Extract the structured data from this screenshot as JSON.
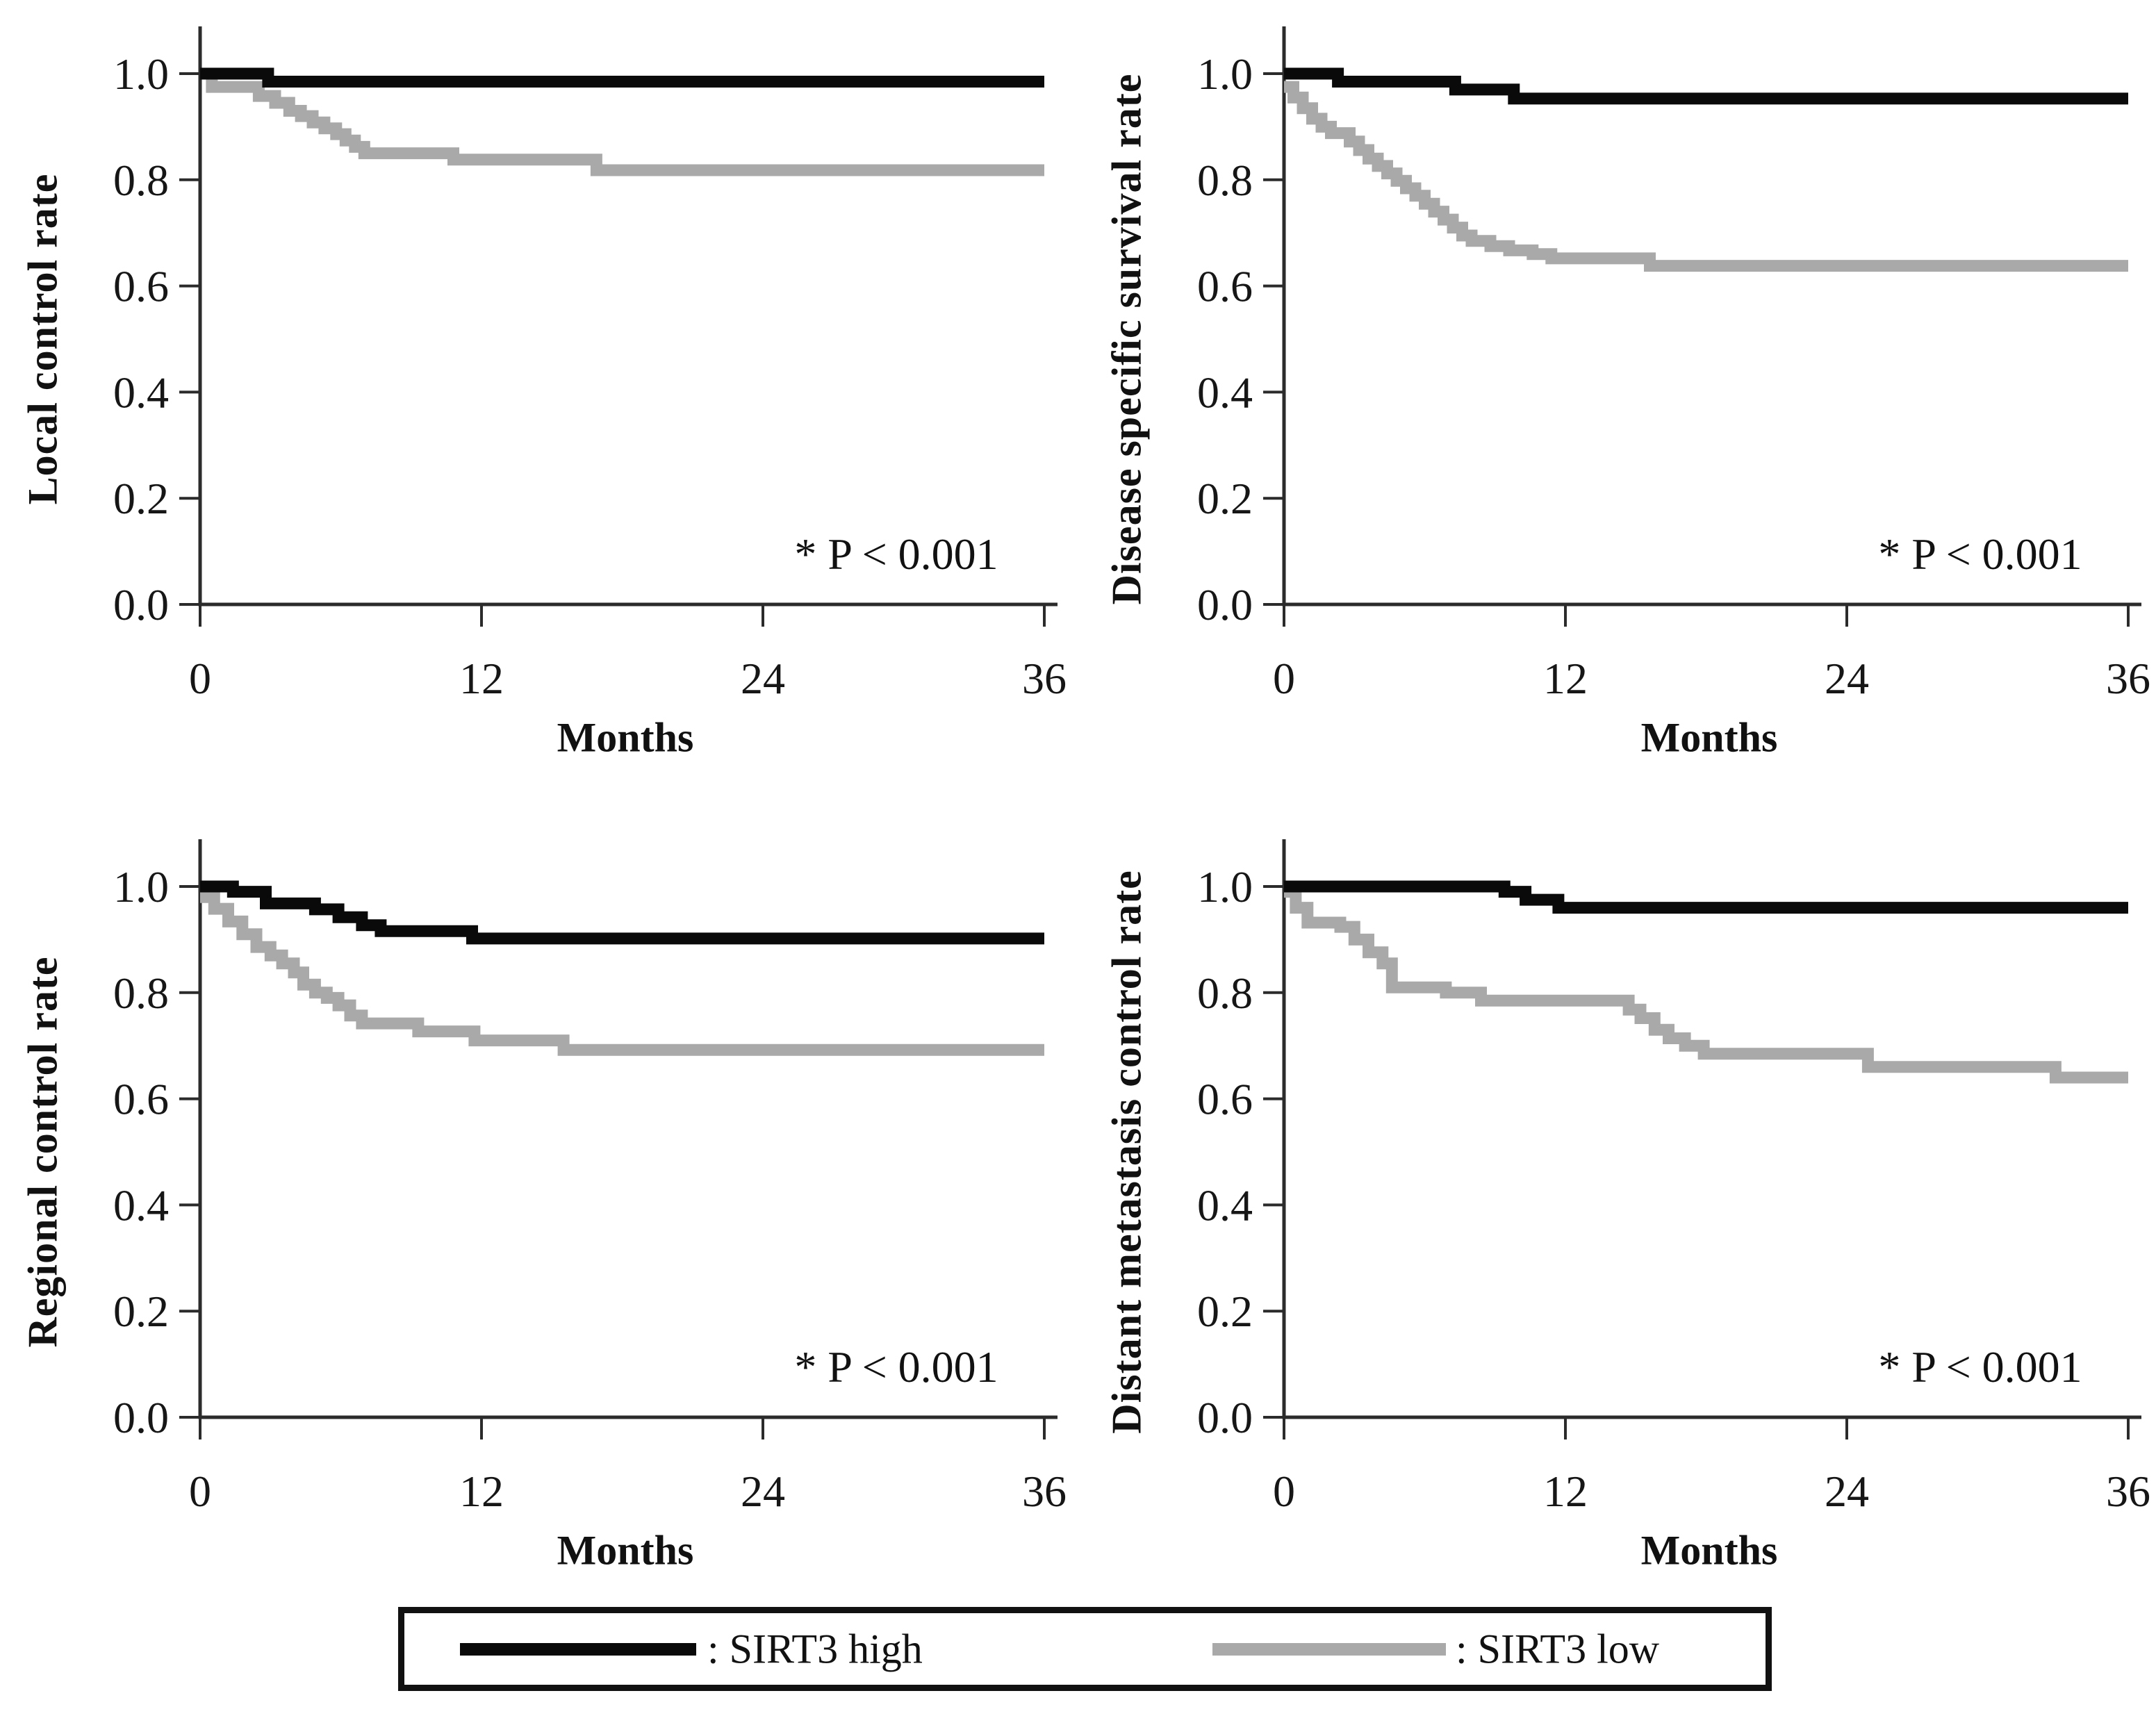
{
  "figure": {
    "background": "#ffffff"
  },
  "chart_data": [
    {
      "type": "line",
      "variant": "kaplan-meier-step",
      "ylabel": "Local control rate",
      "xlabel": "Months",
      "p_label": "* P < 0.001",
      "xlim": [
        0,
        36
      ],
      "ylim": [
        0.0,
        1.0
      ],
      "grid": false,
      "legend_position": "shared-bottom",
      "xticks": {
        "values": [
          0,
          12,
          24,
          36
        ],
        "labels": [
          "0",
          "12",
          "24",
          "36"
        ]
      },
      "yticks": {
        "values": [
          1.0,
          0.8,
          0.6,
          0.4,
          0.2,
          0.0
        ],
        "labels": [
          "1.0",
          "0.8",
          "0.6",
          "0.4",
          "0.2",
          "0.0"
        ]
      },
      "series": [
        {
          "name": "SIRT3 high",
          "color": "#0a0a0a",
          "points": [
            [
              0,
              1.0
            ],
            [
              2.9,
              0.985
            ],
            [
              36,
              0.985
            ]
          ]
        },
        {
          "name": "SIRT3 low",
          "color": "#a9a9a9",
          "points": [
            [
              0,
              1.0
            ],
            [
              0.5,
              0.975
            ],
            [
              2.5,
              0.958
            ],
            [
              3.2,
              0.945
            ],
            [
              3.8,
              0.93
            ],
            [
              4.3,
              0.92
            ],
            [
              4.8,
              0.908
            ],
            [
              5.3,
              0.897
            ],
            [
              5.8,
              0.886
            ],
            [
              6.2,
              0.874
            ],
            [
              6.6,
              0.862
            ],
            [
              7.0,
              0.85
            ],
            [
              10.8,
              0.838
            ],
            [
              16.9,
              0.818
            ],
            [
              36,
              0.818
            ]
          ]
        }
      ]
    },
    {
      "type": "line",
      "variant": "kaplan-meier-step",
      "ylabel": "Disease specific survival rate",
      "xlabel": "Months",
      "p_label": "* P < 0.001",
      "xlim": [
        0,
        36
      ],
      "ylim": [
        0.0,
        1.0
      ],
      "grid": false,
      "legend_position": "shared-bottom",
      "xticks": {
        "values": [
          0,
          12,
          24,
          36
        ],
        "labels": [
          "0",
          "12",
          "24",
          "36"
        ]
      },
      "yticks": {
        "values": [
          1.0,
          0.8,
          0.6,
          0.4,
          0.2,
          0.0
        ],
        "labels": [
          "1.0",
          "0.8",
          "0.6",
          "0.4",
          "0.2",
          "0.0"
        ]
      },
      "series": [
        {
          "name": "SIRT3 high",
          "color": "#0a0a0a",
          "points": [
            [
              0,
              1.0
            ],
            [
              2.3,
              0.985
            ],
            [
              7.3,
              0.97
            ],
            [
              9.8,
              0.953
            ],
            [
              36,
              0.953
            ]
          ]
        },
        {
          "name": "SIRT3 low",
          "color": "#a9a9a9",
          "points": [
            [
              0,
              0.975
            ],
            [
              0.4,
              0.955
            ],
            [
              0.8,
              0.935
            ],
            [
              1.2,
              0.915
            ],
            [
              1.6,
              0.9
            ],
            [
              2.0,
              0.888
            ],
            [
              2.8,
              0.872
            ],
            [
              3.2,
              0.856
            ],
            [
              3.6,
              0.84
            ],
            [
              4.0,
              0.826
            ],
            [
              4.4,
              0.812
            ],
            [
              4.8,
              0.798
            ],
            [
              5.2,
              0.784
            ],
            [
              5.6,
              0.77
            ],
            [
              6.0,
              0.755
            ],
            [
              6.4,
              0.74
            ],
            [
              6.8,
              0.725
            ],
            [
              7.2,
              0.71
            ],
            [
              7.6,
              0.695
            ],
            [
              8.0,
              0.685
            ],
            [
              8.8,
              0.675
            ],
            [
              9.6,
              0.667
            ],
            [
              10.6,
              0.66
            ],
            [
              11.4,
              0.652
            ],
            [
              15.6,
              0.638
            ],
            [
              36,
              0.638
            ]
          ]
        }
      ]
    },
    {
      "type": "line",
      "variant": "kaplan-meier-step",
      "ylabel": "Regional control rate",
      "xlabel": "Months",
      "p_label": "* P < 0.001",
      "xlim": [
        0,
        36
      ],
      "ylim": [
        0.0,
        1.0
      ],
      "grid": false,
      "legend_position": "shared-bottom",
      "xticks": {
        "values": [
          0,
          12,
          24,
          36
        ],
        "labels": [
          "0",
          "12",
          "24",
          "36"
        ]
      },
      "yticks": {
        "values": [
          1.0,
          0.8,
          0.6,
          0.4,
          0.2,
          0.0
        ],
        "labels": [
          "1.0",
          "0.8",
          "0.6",
          "0.4",
          "0.2",
          "0.0"
        ]
      },
      "series": [
        {
          "name": "SIRT3 high",
          "color": "#0a0a0a",
          "points": [
            [
              0,
              1.0
            ],
            [
              1.4,
              0.99
            ],
            [
              2.8,
              0.968
            ],
            [
              4.9,
              0.957
            ],
            [
              5.9,
              0.942
            ],
            [
              6.9,
              0.927
            ],
            [
              7.7,
              0.916
            ],
            [
              11.6,
              0.902
            ],
            [
              36,
              0.902
            ]
          ]
        },
        {
          "name": "SIRT3 low",
          "color": "#a9a9a9",
          "points": [
            [
              0,
              0.98
            ],
            [
              0.6,
              0.958
            ],
            [
              1.2,
              0.934
            ],
            [
              1.8,
              0.91
            ],
            [
              2.4,
              0.886
            ],
            [
              3.0,
              0.87
            ],
            [
              3.5,
              0.855
            ],
            [
              4.0,
              0.838
            ],
            [
              4.4,
              0.815
            ],
            [
              4.9,
              0.8
            ],
            [
              5.4,
              0.79
            ],
            [
              5.9,
              0.776
            ],
            [
              6.4,
              0.757
            ],
            [
              6.9,
              0.742
            ],
            [
              9.3,
              0.727
            ],
            [
              11.7,
              0.71
            ],
            [
              15.5,
              0.692
            ],
            [
              36,
              0.692
            ]
          ]
        }
      ]
    },
    {
      "type": "line",
      "variant": "kaplan-meier-step",
      "ylabel": "Distant metastasis control rate",
      "xlabel": "Months",
      "p_label": "* P < 0.001",
      "xlim": [
        0,
        36
      ],
      "ylim": [
        0.0,
        1.0
      ],
      "grid": false,
      "legend_position": "shared-bottom",
      "xticks": {
        "values": [
          0,
          12,
          24,
          36
        ],
        "labels": [
          "0",
          "12",
          "24",
          "36"
        ]
      },
      "yticks": {
        "values": [
          1.0,
          0.8,
          0.6,
          0.4,
          0.2,
          0.0
        ],
        "labels": [
          "1.0",
          "0.8",
          "0.6",
          "0.4",
          "0.2",
          "0.0"
        ]
      },
      "series": [
        {
          "name": "SIRT3 high",
          "color": "#0a0a0a",
          "points": [
            [
              0,
              1.0
            ],
            [
              9.4,
              0.99
            ],
            [
              10.3,
              0.975
            ],
            [
              11.7,
              0.96
            ],
            [
              36,
              0.96
            ]
          ]
        },
        {
          "name": "SIRT3 low",
          "color": "#a9a9a9",
          "points": [
            [
              0,
              0.99
            ],
            [
              0.5,
              0.96
            ],
            [
              1.0,
              0.932
            ],
            [
              2.4,
              0.924
            ],
            [
              3.0,
              0.9
            ],
            [
              3.6,
              0.876
            ],
            [
              4.2,
              0.855
            ],
            [
              4.6,
              0.81
            ],
            [
              6.9,
              0.8
            ],
            [
              8.4,
              0.785
            ],
            [
              14.7,
              0.768
            ],
            [
              15.2,
              0.752
            ],
            [
              15.8,
              0.73
            ],
            [
              16.4,
              0.714
            ],
            [
              17.1,
              0.7
            ],
            [
              17.9,
              0.685
            ],
            [
              24.9,
              0.66
            ],
            [
              32.9,
              0.64
            ],
            [
              36,
              0.64
            ]
          ]
        }
      ]
    }
  ],
  "legend": {
    "border_color": "#111111",
    "entries": [
      {
        "series": "SIRT3 high",
        "label": ": SIRT3 high",
        "swatch_color": "#0a0a0a"
      },
      {
        "series": "SIRT3 low",
        "label": ": SIRT3 low",
        "swatch_color": "#a9a9a9"
      }
    ]
  }
}
